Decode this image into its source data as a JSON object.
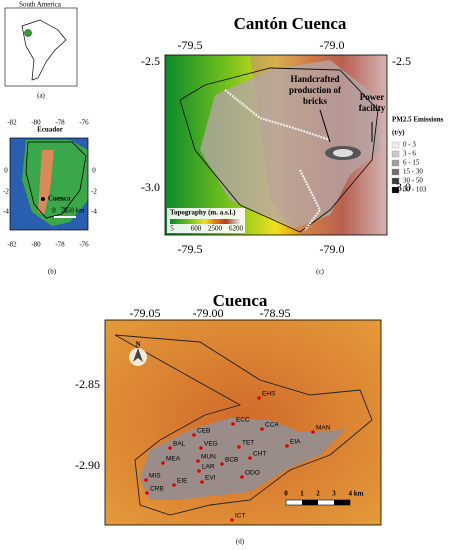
{
  "panel_a": {
    "title": "South America",
    "label": "(a)"
  },
  "panel_b": {
    "title": "Ecuador",
    "city": "Cuenca",
    "scale": [
      "0",
      "75",
      "150 km"
    ],
    "x_ticks": [
      "-82",
      "-80",
      "-78",
      "-76"
    ],
    "y_ticks": [
      "0",
      "-2",
      "-4"
    ],
    "label": "(b)"
  },
  "panel_c": {
    "title": "Cantón Cuenca",
    "x_ticks": [
      "-79.5",
      "-79.0"
    ],
    "y_ticks": [
      "-2.5",
      "-3.0"
    ],
    "annotations": [
      "Handcrafted production of bricks",
      "Power facility"
    ],
    "emissions_legend": {
      "title": "PM2.5 Emissions",
      "unit": "(t/y)",
      "classes": [
        "0 - 3",
        "3 - 6",
        "6 - 15",
        "15 - 30",
        "30 - 50",
        "50 - 103"
      ]
    },
    "topography_legend": {
      "title": "Topography (m. a.s.l.)",
      "ticks": [
        "5",
        "600",
        "2500",
        "6200"
      ]
    },
    "label": "(c)"
  },
  "panel_d": {
    "title": "Cuenca",
    "x_ticks": [
      "-79.05",
      "-79.00",
      "-78.95"
    ],
    "y_ticks": [
      "-2.85",
      "-2.90"
    ],
    "north": "N",
    "stations": [
      "EHS",
      "ECC",
      "CCA",
      "CEB",
      "MAN",
      "EIA",
      "BAL",
      "VEG",
      "TET",
      "MEA",
      "MUN",
      "BCB",
      "CHT",
      "LAR",
      "ODO",
      "EVI",
      "EIE",
      "MIS",
      "CRB",
      "ICT"
    ],
    "scale": [
      "0",
      "1",
      "2",
      "3",
      "4 km"
    ],
    "label": "(d)"
  }
}
